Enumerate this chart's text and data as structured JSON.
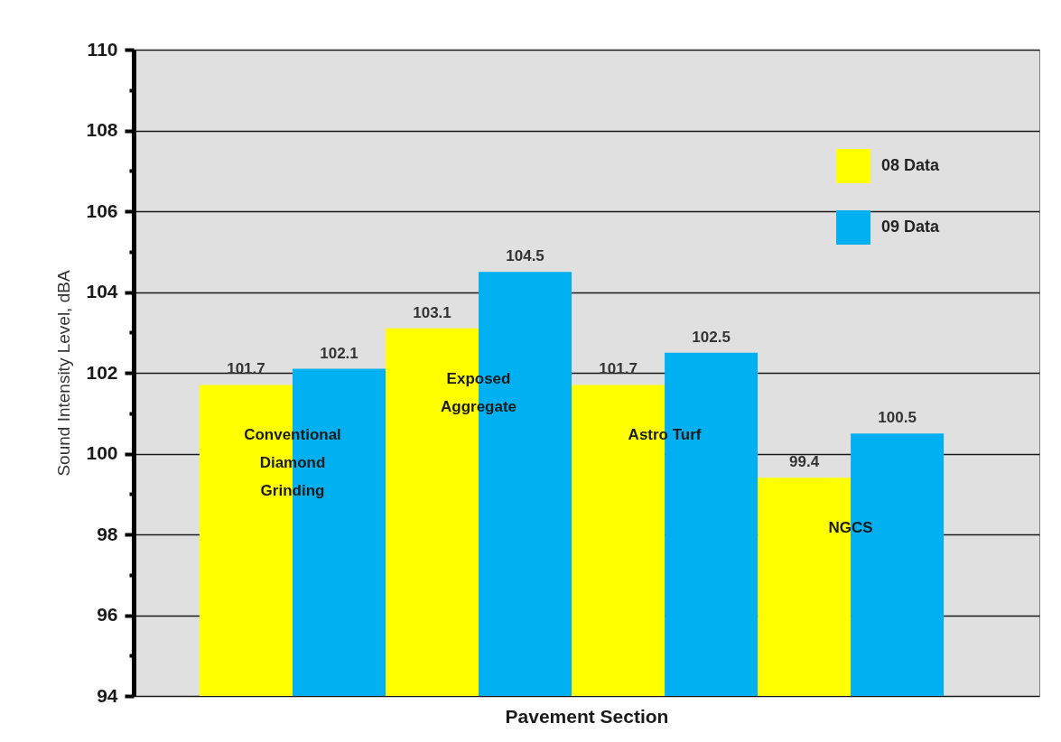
{
  "chart_data": {
    "type": "bar",
    "xlabel": "Pavement Section",
    "ylabel": "Sound Intensity Level, dBA",
    "categories": [
      "Conventional\nDiamond\nGrinding",
      "Exposed\nAggregate",
      "Astro Turf",
      "NGCS"
    ],
    "series": [
      {
        "name": "08 Data",
        "color": "#ffff00",
        "values": [
          101.7,
          103.1,
          101.7,
          99.4
        ]
      },
      {
        "name": "09 Data",
        "color": "#00b0f0",
        "values": [
          102.1,
          104.5,
          102.5,
          100.5
        ]
      }
    ],
    "ylim": [
      94,
      110
    ],
    "yticks": [
      94,
      {
        "value": 95,
        "label": null
      },
      96,
      {
        "value": 97,
        "label": null
      },
      98,
      {
        "value": 99,
        "label": null
      },
      100,
      {
        "value": 101,
        "label": null
      },
      102,
      {
        "value": 103,
        "label": null
      },
      104,
      {
        "value": 105,
        "label": null
      },
      106,
      {
        "value": 107,
        "label": null
      },
      108,
      {
        "value": 109,
        "label": null
      },
      110
    ],
    "grid": "y",
    "legend": "top right",
    "data_labels": true,
    "tick_labels": "y"
  }
}
